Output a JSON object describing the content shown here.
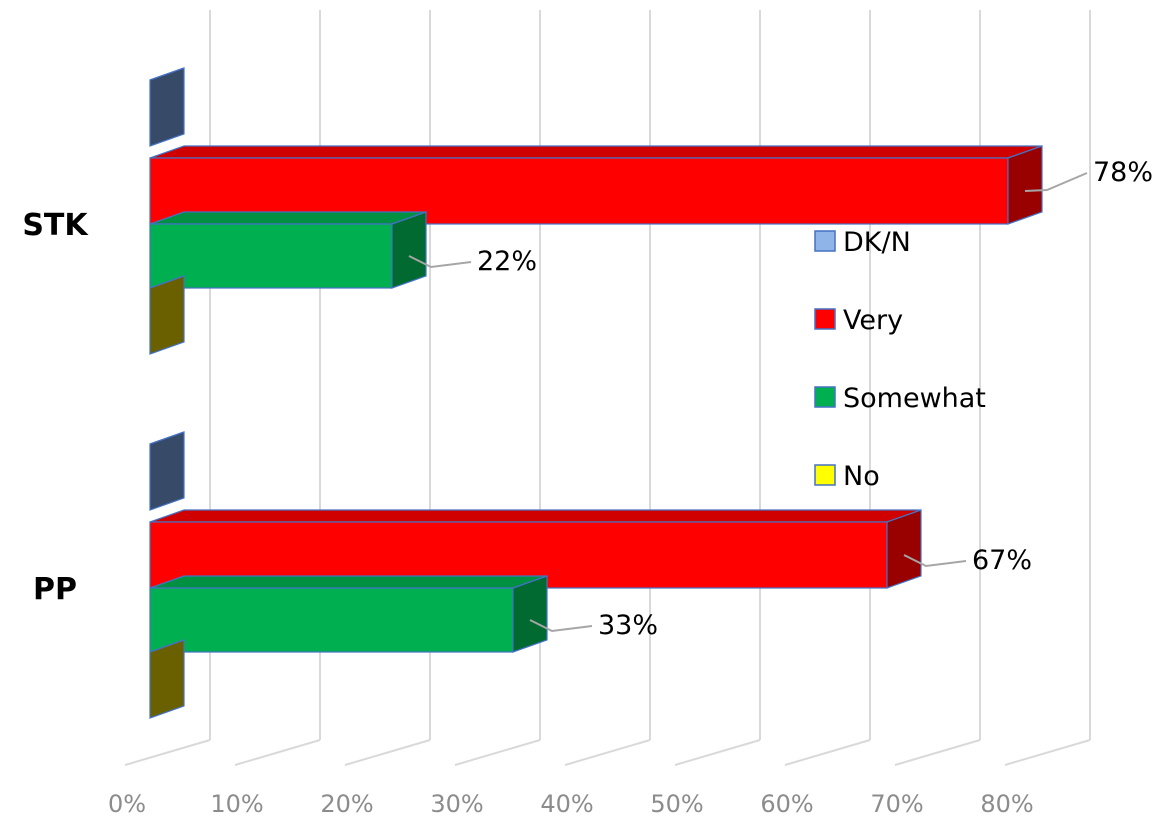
{
  "chart_data": {
    "type": "bar",
    "orientation": "horizontal",
    "three_d": true,
    "categories": [
      "STK",
      "PP"
    ],
    "series": [
      {
        "name": "DK/N",
        "values": [
          0,
          0
        ],
        "color": "#5b7bab",
        "legend_color": "#8fb4e8"
      },
      {
        "name": "Very",
        "values": [
          78,
          67
        ],
        "color": "#ff0000",
        "legend_color": "#ff0000",
        "labels": [
          "78%",
          "67%"
        ]
      },
      {
        "name": "Somewhat",
        "values": [
          22,
          33
        ],
        "color": "#00b050",
        "legend_color": "#00b050",
        "labels": [
          "22%",
          "33%"
        ]
      },
      {
        "name": "No",
        "values": [
          0,
          0
        ],
        "color": "#b0a000",
        "legend_color": "#ffff00"
      }
    ],
    "x_ticks": [
      "0%",
      "10%",
      "20%",
      "30%",
      "40%",
      "50%",
      "60%",
      "70%",
      "80%"
    ],
    "xlim": [
      0,
      80
    ],
    "grid": true,
    "legend_position": "right"
  }
}
